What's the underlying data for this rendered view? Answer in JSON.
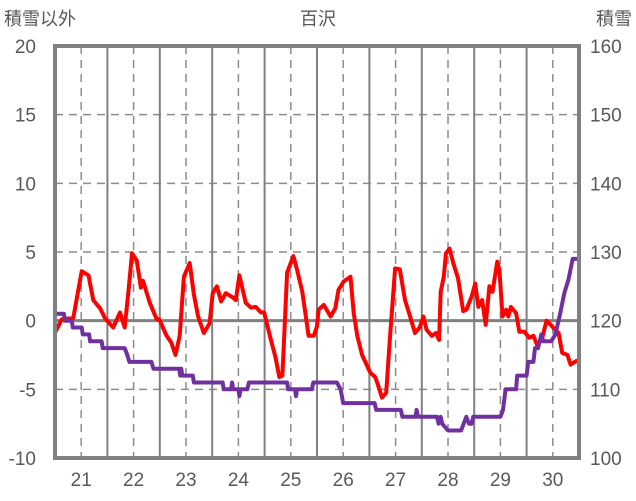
{
  "chart_data": {
    "type": "line",
    "title": "百沢",
    "ylabel_left": "積雪以外",
    "ylabel_right": "積雪",
    "xlim": [
      20.5,
      30.5
    ],
    "ylim_left": [
      -10,
      20
    ],
    "ylim_right": [
      100,
      160
    ],
    "x_ticks": [
      "21",
      "22",
      "23",
      "24",
      "25",
      "26",
      "27",
      "28",
      "29",
      "30"
    ],
    "y_ticks_left": [
      "20",
      "15",
      "10",
      "5",
      "0",
      "-5",
      "-10"
    ],
    "y_ticks_right": [
      "160",
      "150",
      "140",
      "130",
      "120",
      "110",
      "100"
    ],
    "grid": true,
    "colors": {
      "temperature": "#ff0000",
      "snow": "#7030a0",
      "axis": "#808080",
      "text": "#595959"
    },
    "series": [
      {
        "name": "積雪以外",
        "axis": "left",
        "color": "#ff0000",
        "points": [
          [
            20.51,
            -0.8
          ],
          [
            20.63,
            0.1
          ],
          [
            20.85,
            0.2
          ],
          [
            21.01,
            3.6
          ],
          [
            21.14,
            3.3
          ],
          [
            21.23,
            1.5
          ],
          [
            21.36,
            0.9
          ],
          [
            21.45,
            0.2
          ],
          [
            21.61,
            -0.5
          ],
          [
            21.74,
            0.6
          ],
          [
            21.83,
            -0.5
          ],
          [
            21.9,
            2.1
          ],
          [
            21.97,
            4.9
          ],
          [
            22.06,
            4.4
          ],
          [
            22.14,
            2.4
          ],
          [
            22.18,
            2.9
          ],
          [
            22.31,
            1.3
          ],
          [
            22.44,
            0.1
          ],
          [
            22.49,
            0.1
          ],
          [
            22.63,
            -1.1
          ],
          [
            22.72,
            -1.6
          ],
          [
            22.8,
            -2.5
          ],
          [
            22.88,
            -1.1
          ],
          [
            22.96,
            3.2
          ],
          [
            23.07,
            4.2
          ],
          [
            23.15,
            1.9
          ],
          [
            23.23,
            0.3
          ],
          [
            23.34,
            -0.9
          ],
          [
            23.45,
            -0.2
          ],
          [
            23.51,
            2.0
          ],
          [
            23.59,
            2.5
          ],
          [
            23.67,
            1.4
          ],
          [
            23.76,
            2.0
          ],
          [
            23.89,
            1.7
          ],
          [
            23.95,
            1.5
          ],
          [
            24.02,
            3.3
          ],
          [
            24.14,
            1.3
          ],
          [
            24.24,
            0.95
          ],
          [
            24.33,
            1.0
          ],
          [
            24.43,
            0.6
          ],
          [
            24.49,
            0.6
          ],
          [
            24.62,
            -1.4
          ],
          [
            24.71,
            -2.7
          ],
          [
            24.78,
            -4.1
          ],
          [
            24.84,
            -4.0
          ],
          [
            24.93,
            3.5
          ],
          [
            25.05,
            4.7
          ],
          [
            25.12,
            3.7
          ],
          [
            25.22,
            2.1
          ],
          [
            25.34,
            -1.1
          ],
          [
            25.44,
            -1.1
          ],
          [
            25.5,
            -0.4
          ],
          [
            25.53,
            0.8
          ],
          [
            25.63,
            1.15
          ],
          [
            25.76,
            0.3
          ],
          [
            25.85,
            0.9
          ],
          [
            25.91,
            2.25
          ],
          [
            26.01,
            2.85
          ],
          [
            26.14,
            3.2
          ],
          [
            26.2,
            0.55
          ],
          [
            26.27,
            -1.1
          ],
          [
            26.36,
            -2.5
          ],
          [
            26.52,
            -3.8
          ],
          [
            26.61,
            -4.1
          ],
          [
            26.67,
            -4.75
          ],
          [
            26.74,
            -5.6
          ],
          [
            26.82,
            -5.25
          ],
          [
            26.89,
            -1.4
          ],
          [
            26.99,
            3.8
          ],
          [
            27.08,
            3.75
          ],
          [
            27.18,
            1.5
          ],
          [
            27.27,
            0.4
          ],
          [
            27.37,
            -0.9
          ],
          [
            27.46,
            -0.5
          ],
          [
            27.53,
            0.3
          ],
          [
            27.59,
            -0.65
          ],
          [
            27.69,
            -1.1
          ],
          [
            27.77,
            -0.9
          ],
          [
            27.83,
            -1.4
          ],
          [
            27.86,
            2.1
          ],
          [
            27.92,
            3.2
          ],
          [
            27.96,
            4.9
          ],
          [
            28.03,
            5.25
          ],
          [
            28.1,
            4.2
          ],
          [
            28.19,
            3.1
          ],
          [
            28.29,
            0.7
          ],
          [
            28.35,
            0.8
          ],
          [
            28.45,
            1.75
          ],
          [
            28.52,
            2.7
          ],
          [
            28.58,
            1.0
          ],
          [
            28.65,
            1.5
          ],
          [
            28.72,
            -0.3
          ],
          [
            28.79,
            2.5
          ],
          [
            28.85,
            2.1
          ],
          [
            28.94,
            4.3
          ],
          [
            28.98,
            3.7
          ],
          [
            29.04,
            0.3
          ],
          [
            29.11,
            0.8
          ],
          [
            29.15,
            0.3
          ],
          [
            29.2,
            1.0
          ],
          [
            29.3,
            0.55
          ],
          [
            29.36,
            -0.8
          ],
          [
            29.46,
            -0.8
          ],
          [
            29.55,
            -1.25
          ],
          [
            29.63,
            -1.1
          ],
          [
            29.71,
            -1.85
          ],
          [
            29.8,
            -1.25
          ],
          [
            29.88,
            0.0
          ],
          [
            29.96,
            -0.3
          ],
          [
            30.04,
            -0.65
          ],
          [
            30.11,
            -0.9
          ],
          [
            30.18,
            -2.35
          ],
          [
            30.28,
            -2.5
          ],
          [
            30.34,
            -3.2
          ],
          [
            30.44,
            -2.95
          ],
          [
            30.48,
            -2.9
          ]
        ]
      },
      {
        "name": "積雪",
        "axis": "right",
        "color": "#7030a0",
        "points": [
          [
            20.51,
            121
          ],
          [
            20.67,
            121
          ],
          [
            20.69,
            120
          ],
          [
            20.82,
            120
          ],
          [
            20.84,
            119
          ],
          [
            21.01,
            119
          ],
          [
            21.03,
            118
          ],
          [
            21.15,
            118
          ],
          [
            21.17,
            117
          ],
          [
            21.39,
            117
          ],
          [
            21.41,
            116
          ],
          [
            21.83,
            116
          ],
          [
            21.88,
            115
          ],
          [
            21.92,
            114
          ],
          [
            22.34,
            114
          ],
          [
            22.38,
            113
          ],
          [
            22.87,
            113
          ],
          [
            22.89,
            112
          ],
          [
            22.91,
            113
          ],
          [
            22.93,
            112
          ],
          [
            23.13,
            112
          ],
          [
            23.15,
            111
          ],
          [
            23.7,
            111
          ],
          [
            23.72,
            110
          ],
          [
            23.86,
            110
          ],
          [
            23.88,
            111
          ],
          [
            23.9,
            110
          ],
          [
            24.0,
            110
          ],
          [
            24.02,
            109
          ],
          [
            24.04,
            110
          ],
          [
            24.17,
            110
          ],
          [
            24.2,
            111
          ],
          [
            24.93,
            111
          ],
          [
            24.95,
            110
          ],
          [
            25.08,
            110
          ],
          [
            25.1,
            109
          ],
          [
            25.12,
            110
          ],
          [
            25.4,
            110
          ],
          [
            25.43,
            111
          ],
          [
            25.88,
            111
          ],
          [
            25.95,
            110
          ],
          [
            26.0,
            108
          ],
          [
            26.6,
            108
          ],
          [
            26.63,
            107
          ],
          [
            27.1,
            107
          ],
          [
            27.13,
            106
          ],
          [
            27.38,
            106
          ],
          [
            27.4,
            107
          ],
          [
            27.43,
            106
          ],
          [
            27.79,
            106
          ],
          [
            27.82,
            105
          ],
          [
            27.86,
            106
          ],
          [
            27.89,
            105
          ],
          [
            28.0,
            104
          ],
          [
            28.25,
            104
          ],
          [
            28.35,
            106
          ],
          [
            28.4,
            105
          ],
          [
            28.45,
            105
          ],
          [
            28.48,
            106
          ],
          [
            29.0,
            106
          ],
          [
            29.05,
            107
          ],
          [
            29.1,
            110
          ],
          [
            29.3,
            110
          ],
          [
            29.32,
            112
          ],
          [
            29.5,
            112
          ],
          [
            29.53,
            114
          ],
          [
            29.63,
            114
          ],
          [
            29.66,
            116
          ],
          [
            29.72,
            116
          ],
          [
            29.78,
            118
          ],
          [
            29.82,
            117
          ],
          [
            29.97,
            117
          ],
          [
            30.05,
            118
          ],
          [
            30.14,
            121
          ],
          [
            30.22,
            124
          ],
          [
            30.3,
            126
          ],
          [
            30.38,
            129
          ],
          [
            30.48,
            129
          ]
        ]
      }
    ]
  }
}
